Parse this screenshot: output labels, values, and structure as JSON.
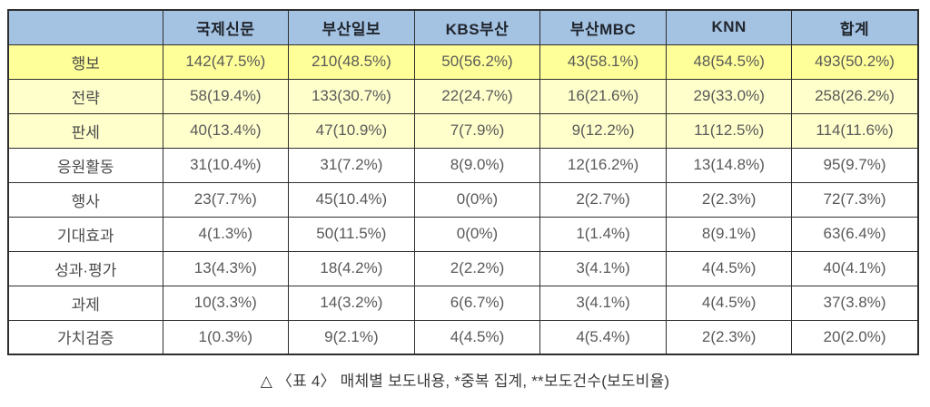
{
  "chart_data": {
    "type": "table",
    "caption": "△ 〈표 4〉 매체별 보도내용, *중복 집계, **보도건수(보도비율)",
    "columns": [
      "",
      "국제신문",
      "부산일보",
      "KBS부산",
      "부산MBC",
      "KNN",
      "합계"
    ],
    "rows": [
      {
        "label": "행보",
        "bg": "#FFFF99",
        "values": [
          "142(47.5%)",
          "210(48.5%)",
          "50(56.2%)",
          "43(58.1%)",
          "48(54.5%)",
          "493(50.2%)"
        ]
      },
      {
        "label": "전략",
        "bg": "#FFFFCC",
        "values": [
          "58(19.4%)",
          "133(30.7%)",
          "22(24.7%)",
          "16(21.6%)",
          "29(33.0%)",
          "258(26.2%)"
        ]
      },
      {
        "label": "판세",
        "bg": "#FFFFCC",
        "values": [
          "40(13.4%)",
          "47(10.9%)",
          "7(7.9%)",
          "9(12.2%)",
          "11(12.5%)",
          "114(11.6%)"
        ]
      },
      {
        "label": "응원활동",
        "bg": "#FFFFFF",
        "values": [
          "31(10.4%)",
          "31(7.2%)",
          "8(9.0%)",
          "12(16.2%)",
          "13(14.8%)",
          "95(9.7%)"
        ]
      },
      {
        "label": "행사",
        "bg": "#FFFFFF",
        "values": [
          "23(7.7%)",
          "45(10.4%)",
          "0(0%)",
          "2(2.7%)",
          "2(2.3%)",
          "72(7.3%)"
        ]
      },
      {
        "label": "기대효과",
        "bg": "#FFFFFF",
        "values": [
          "4(1.3%)",
          "50(11.5%)",
          "0(0%)",
          "1(1.4%)",
          "8(9.1%)",
          "63(6.4%)"
        ]
      },
      {
        "label": "성과·평가",
        "bg": "#FFFFFF",
        "values": [
          "13(4.3%)",
          "18(4.2%)",
          "2(2.2%)",
          "3(4.1%)",
          "4(4.5%)",
          "40(4.1%)"
        ]
      },
      {
        "label": "과제",
        "bg": "#FFFFFF",
        "values": [
          "10(3.3%)",
          "14(3.2%)",
          "6(6.7%)",
          "3(4.1%)",
          "4(4.5%)",
          "37(3.8%)"
        ]
      },
      {
        "label": "가치검증",
        "bg": "#FFFFFF",
        "values": [
          "1(0.3%)",
          "9(2.1%)",
          "4(4.5%)",
          "4(5.4%)",
          "2(2.3%)",
          "20(2.0%)"
        ]
      }
    ]
  },
  "colors": {
    "header_bg": "#A4C2E2",
    "highlight_row_bg": "#FFFF99",
    "subhighlight_row_bg": "#FFFFCC",
    "plain_row_bg": "#FFFFFF",
    "border": "#2E2E2E",
    "header_text": "#21262E",
    "data_text": "#595959",
    "label_text": "#4A4A4A"
  }
}
